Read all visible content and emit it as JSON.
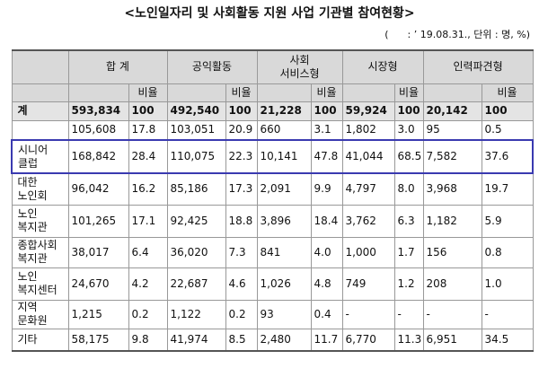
{
  "title": "<노인일자리 및 사회활동 지원 사업 기관별 참여현황>",
  "subtitle": "(      : ’ 19.08.31., 단위 : 명, %)",
  "table": {
    "groups": [
      "합 계",
      "공익활동",
      "사회\n서비스형",
      "시장형",
      "인력파견형"
    ],
    "ratio_label": "비율",
    "rows": [
      {
        "label": "계",
        "cells": [
          "593,834",
          "100",
          "492,540",
          "100",
          "21,228",
          "100",
          "59,924",
          "100",
          "20,142",
          "100"
        ]
      },
      {
        "label": null,
        "cells": [
          "105,608",
          "17.8",
          "103,051",
          "20.9",
          "660",
          "3.1",
          "1,802",
          "3.0",
          "95",
          "0.5"
        ]
      },
      {
        "label": "시니어\n클럽",
        "cells": [
          "168,842",
          "28.4",
          "110,075",
          "22.3",
          "10,141",
          "47.8",
          "41,044",
          "68.5",
          "7,582",
          "37.6"
        ]
      },
      {
        "label": "대한\n노인회",
        "cells": [
          "96,042",
          "16.2",
          "85,186",
          "17.3",
          "2,091",
          "9.9",
          "4,797",
          "8.0",
          "3,968",
          "19.7"
        ]
      },
      {
        "label": "노인\n복지관",
        "cells": [
          "101,265",
          "17.1",
          "92,425",
          "18.8",
          "3,896",
          "18.4",
          "3,762",
          "6.3",
          "1,182",
          "5.9"
        ]
      },
      {
        "label": "종합사회\n복지관",
        "cells": [
          "38,017",
          "6.4",
          "36,020",
          "7.3",
          "841",
          "4.0",
          "1,000",
          "1.7",
          "156",
          "0.8"
        ]
      },
      {
        "label": "노인\n복지센터",
        "cells": [
          "24,670",
          "4.2",
          "22,687",
          "4.6",
          "1,026",
          "4.8",
          "749",
          "1.2",
          "208",
          "1.0"
        ]
      },
      {
        "label": "지역\n문화원",
        "cells": [
          "1,215",
          "0.2",
          "1,122",
          "0.2",
          "93",
          "0.4",
          "-",
          "-",
          "-",
          "-"
        ]
      },
      {
        "label": "기타",
        "cells": [
          "58,175",
          "9.8",
          "41,974",
          "8.5",
          "2,480",
          "11.7",
          "6,770",
          "11.3",
          "6,951",
          "34.5"
        ]
      }
    ]
  }
}
